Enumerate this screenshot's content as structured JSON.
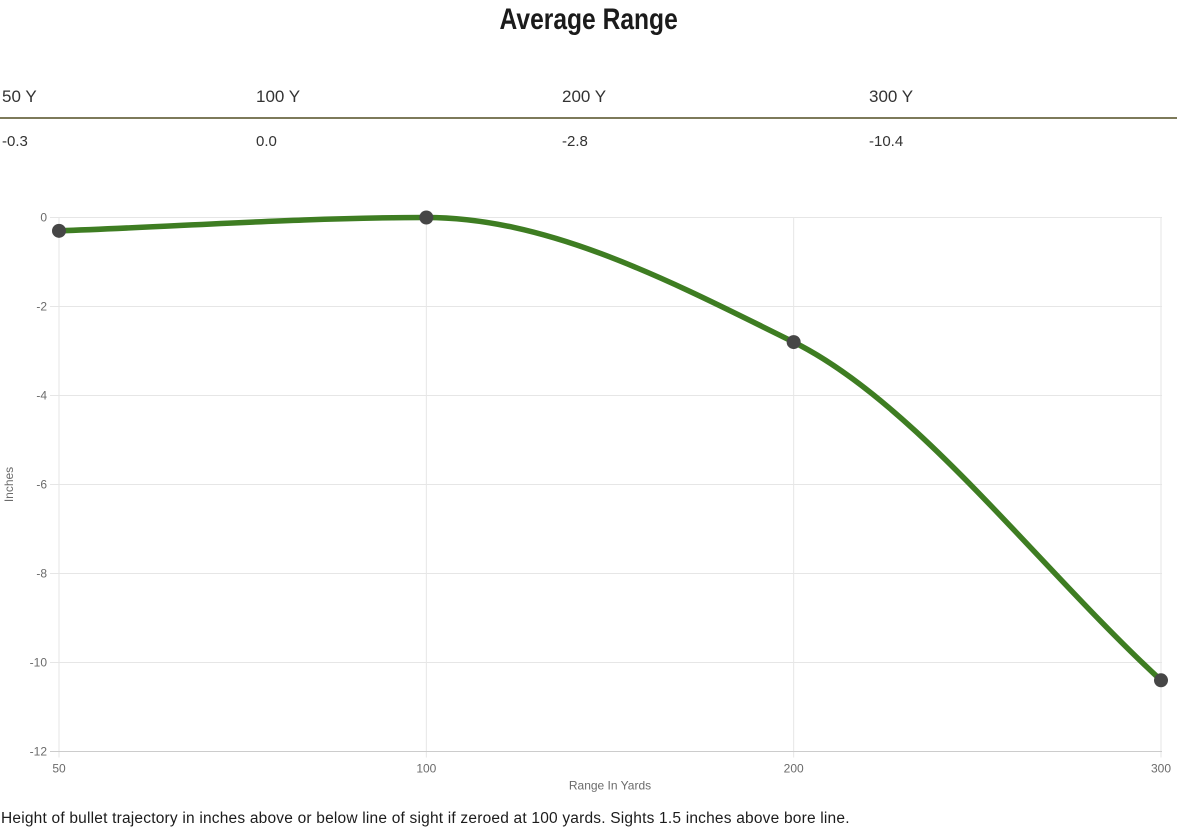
{
  "page": {
    "title": "Average Range",
    "caption": "Height of bullet trajectory in inches above or below line of sight if zeroed at 100 yards. Sights 1.5 inches above bore line."
  },
  "summary_table": {
    "columns": [
      {
        "label": "50 Y",
        "value": "-0.3"
      },
      {
        "label": "100 Y",
        "value": "0.0"
      },
      {
        "label": "200 Y",
        "value": "-2.8"
      },
      {
        "label": "300 Y",
        "value": "-10.4"
      }
    ],
    "divider_color": "#7d7a5a"
  },
  "chart_data": {
    "type": "line",
    "categories": [
      "50",
      "100",
      "200",
      "300"
    ],
    "values": [
      -0.3,
      0.0,
      -2.8,
      -10.4
    ],
    "series_name": "Height of bullet trajectory (inches)",
    "title": "Average Range",
    "xlabel": "Range In Yards",
    "ylabel": "Inches",
    "ylim": [
      -12,
      0
    ],
    "y_ticks": [
      0,
      -2,
      -4,
      -6,
      -8,
      -10,
      -12
    ],
    "x_axis_type": "category",
    "grid": true,
    "legend": "none",
    "interpolation": "monotone",
    "line_color": "#3e7d22",
    "marker_color": "#464646",
    "grid_color": "#e6e6e6",
    "axis_border_color": "#cccccc",
    "tick_text_color": "#6b6b6b"
  }
}
